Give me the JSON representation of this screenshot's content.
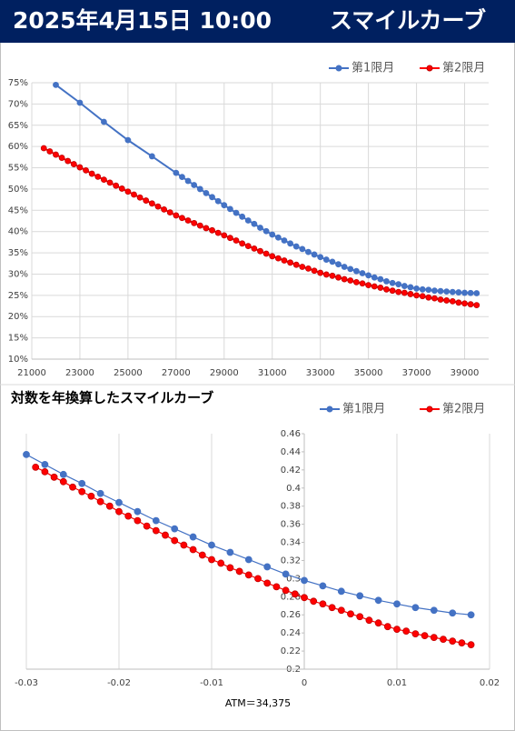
{
  "header": {
    "title": "2025年4月15日 10:00",
    "subtitle": "スマイルカーブ"
  },
  "chart_data": [
    {
      "type": "line",
      "grid": [
        "x",
        "y"
      ],
      "legend": "top-right",
      "xlim": [
        21000,
        40000
      ],
      "xticks": [
        21000,
        23000,
        25000,
        27000,
        29000,
        31000,
        33000,
        35000,
        37000,
        39000
      ],
      "ylim": [
        10,
        75
      ],
      "yticks": [
        {
          "value": 10,
          "label": "10%"
        },
        {
          "value": 15,
          "label": "15%"
        },
        {
          "value": 20,
          "label": "20%"
        },
        {
          "value": 25,
          "label": "25%"
        },
        {
          "value": 30,
          "label": "30%"
        },
        {
          "value": 35,
          "label": "35%"
        },
        {
          "value": 40,
          "label": "40%"
        },
        {
          "value": 45,
          "label": "45%"
        },
        {
          "value": 50,
          "label": "50%"
        },
        {
          "value": 55,
          "label": "55%"
        },
        {
          "value": 60,
          "label": "60%"
        },
        {
          "value": 65,
          "label": "65%"
        },
        {
          "value": 70,
          "label": "70%"
        },
        {
          "value": 75,
          "label": "75%"
        }
      ],
      "series": [
        {
          "name": "第1限月",
          "color": "#4472c4",
          "x": [
            22000,
            23000,
            24000,
            25000,
            26000,
            27000,
            27250,
            27500,
            27750,
            28000,
            28250,
            28500,
            28750,
            29000,
            29250,
            29500,
            29750,
            30000,
            30250,
            30500,
            30750,
            31000,
            31250,
            31500,
            31750,
            32000,
            32250,
            32500,
            32750,
            33000,
            33250,
            33500,
            33750,
            34000,
            34250,
            34500,
            34750,
            35000,
            35250,
            35500,
            35750,
            36000,
            36250,
            36500,
            36750,
            37000,
            37250,
            37500,
            37750,
            38000,
            38250,
            38500,
            38750,
            39000,
            39250,
            39500
          ],
          "values": [
            74.5,
            70.3,
            65.8,
            61.5,
            57.7,
            53.8,
            52.85,
            51.9,
            50.95,
            50.0,
            49.05,
            48.1,
            47.15,
            46.2,
            45.3,
            44.4,
            43.5,
            42.6,
            41.8,
            40.9,
            40.1,
            39.3,
            38.6,
            37.9,
            37.2,
            36.5,
            35.9,
            35.2,
            34.6,
            34.0,
            33.4,
            32.9,
            32.3,
            31.7,
            31.2,
            30.7,
            30.2,
            29.7,
            29.2,
            28.8,
            28.3,
            27.9,
            27.6,
            27.2,
            26.9,
            26.6,
            26.4,
            26.3,
            26.1,
            26.0,
            25.9,
            25.8,
            25.7,
            25.6,
            25.55,
            25.5
          ]
        },
        {
          "name": "第2限月",
          "color": "#ff0000",
          "x": [
            21500,
            21750,
            22000,
            22250,
            22500,
            22750,
            23000,
            23250,
            23500,
            23750,
            24000,
            24250,
            24500,
            24750,
            25000,
            25250,
            25500,
            25750,
            26000,
            26250,
            26500,
            26750,
            27000,
            27250,
            27500,
            27750,
            28000,
            28250,
            28500,
            28750,
            29000,
            29250,
            29500,
            29750,
            30000,
            30250,
            30500,
            30750,
            31000,
            31250,
            31500,
            31750,
            32000,
            32250,
            32500,
            32750,
            33000,
            33250,
            33500,
            33750,
            34000,
            34250,
            34500,
            34750,
            35000,
            35250,
            35500,
            35750,
            36000,
            36250,
            36500,
            36750,
            37000,
            37250,
            37500,
            37750,
            38000,
            38250,
            38500,
            38750,
            39000,
            39250,
            39500
          ],
          "values": [
            59.6,
            58.85,
            58.1,
            57.35,
            56.6,
            55.85,
            55.1,
            54.4,
            53.6,
            52.9,
            52.2,
            51.5,
            50.8,
            50.1,
            49.4,
            48.7,
            48.0,
            47.3,
            46.6,
            45.9,
            45.2,
            44.5,
            43.8,
            43.2,
            42.6,
            42.0,
            41.4,
            40.8,
            40.3,
            39.7,
            39.1,
            38.5,
            37.9,
            37.2,
            36.6,
            36.0,
            35.4,
            34.8,
            34.2,
            33.7,
            33.2,
            32.7,
            32.2,
            31.7,
            31.3,
            30.8,
            30.3,
            29.9,
            29.6,
            29.2,
            28.8,
            28.5,
            28.1,
            27.8,
            27.4,
            27.1,
            26.8,
            26.4,
            26.1,
            25.8,
            25.6,
            25.3,
            25.0,
            24.8,
            24.5,
            24.3,
            24.0,
            23.8,
            23.6,
            23.3,
            23.1,
            22.9,
            22.7
          ]
        }
      ]
    },
    {
      "type": "line",
      "title": "対数を年換算したスマイルカーブ",
      "x_label": "ATM＝34,375",
      "grid": [
        "x"
      ],
      "legend": "top-right",
      "yaxis_crosses": 0,
      "xlim": [
        -0.03,
        0.02
      ],
      "xticks": [
        -0.03,
        -0.02,
        -0.01,
        0,
        0.01,
        0.02
      ],
      "ylim": [
        0.2,
        0.46
      ],
      "yticks": [
        0.2,
        0.22,
        0.24,
        0.26,
        0.28,
        0.3,
        0.32,
        0.34,
        0.36,
        0.38,
        0.4,
        0.42,
        0.44,
        0.46
      ],
      "series": [
        {
          "name": "第1限月",
          "color": "#4472c4",
          "x": [
            -0.03,
            -0.028,
            -0.026,
            -0.024,
            -0.022,
            -0.02,
            -0.018,
            -0.016,
            -0.014,
            -0.012,
            -0.01,
            -0.008,
            -0.006,
            -0.004,
            -0.002,
            0,
            0.002,
            0.004,
            0.006,
            0.008,
            0.01,
            0.012,
            0.014,
            0.016,
            0.018
          ],
          "values": [
            0.437,
            0.426,
            0.415,
            0.405,
            0.394,
            0.384,
            0.374,
            0.364,
            0.355,
            0.346,
            0.337,
            0.329,
            0.321,
            0.313,
            0.305,
            0.298,
            0.292,
            0.286,
            0.281,
            0.276,
            0.272,
            0.268,
            0.265,
            0.262,
            0.26
          ]
        },
        {
          "name": "第2限月",
          "color": "#ff0000",
          "x": [
            -0.029,
            -0.028,
            -0.027,
            -0.026,
            -0.025,
            -0.024,
            -0.023,
            -0.022,
            -0.021,
            -0.02,
            -0.019,
            -0.018,
            -0.017,
            -0.016,
            -0.015,
            -0.014,
            -0.013,
            -0.012,
            -0.011,
            -0.01,
            -0.009,
            -0.008,
            -0.007,
            -0.006,
            -0.005,
            -0.004,
            -0.003,
            -0.002,
            -0.001,
            0,
            0.001,
            0.002,
            0.003,
            0.004,
            0.005,
            0.006,
            0.007,
            0.008,
            0.009,
            0.01,
            0.011,
            0.012,
            0.013,
            0.014,
            0.015,
            0.016,
            0.017,
            0.018
          ],
          "values": [
            0.423,
            0.418,
            0.412,
            0.407,
            0.401,
            0.396,
            0.391,
            0.385,
            0.38,
            0.374,
            0.369,
            0.364,
            0.358,
            0.353,
            0.348,
            0.342,
            0.337,
            0.332,
            0.326,
            0.321,
            0.317,
            0.312,
            0.308,
            0.304,
            0.3,
            0.295,
            0.291,
            0.287,
            0.283,
            0.279,
            0.275,
            0.272,
            0.268,
            0.265,
            0.261,
            0.258,
            0.254,
            0.251,
            0.247,
            0.244,
            0.242,
            0.239,
            0.237,
            0.235,
            0.233,
            0.231,
            0.229,
            0.227
          ]
        }
      ]
    }
  ]
}
